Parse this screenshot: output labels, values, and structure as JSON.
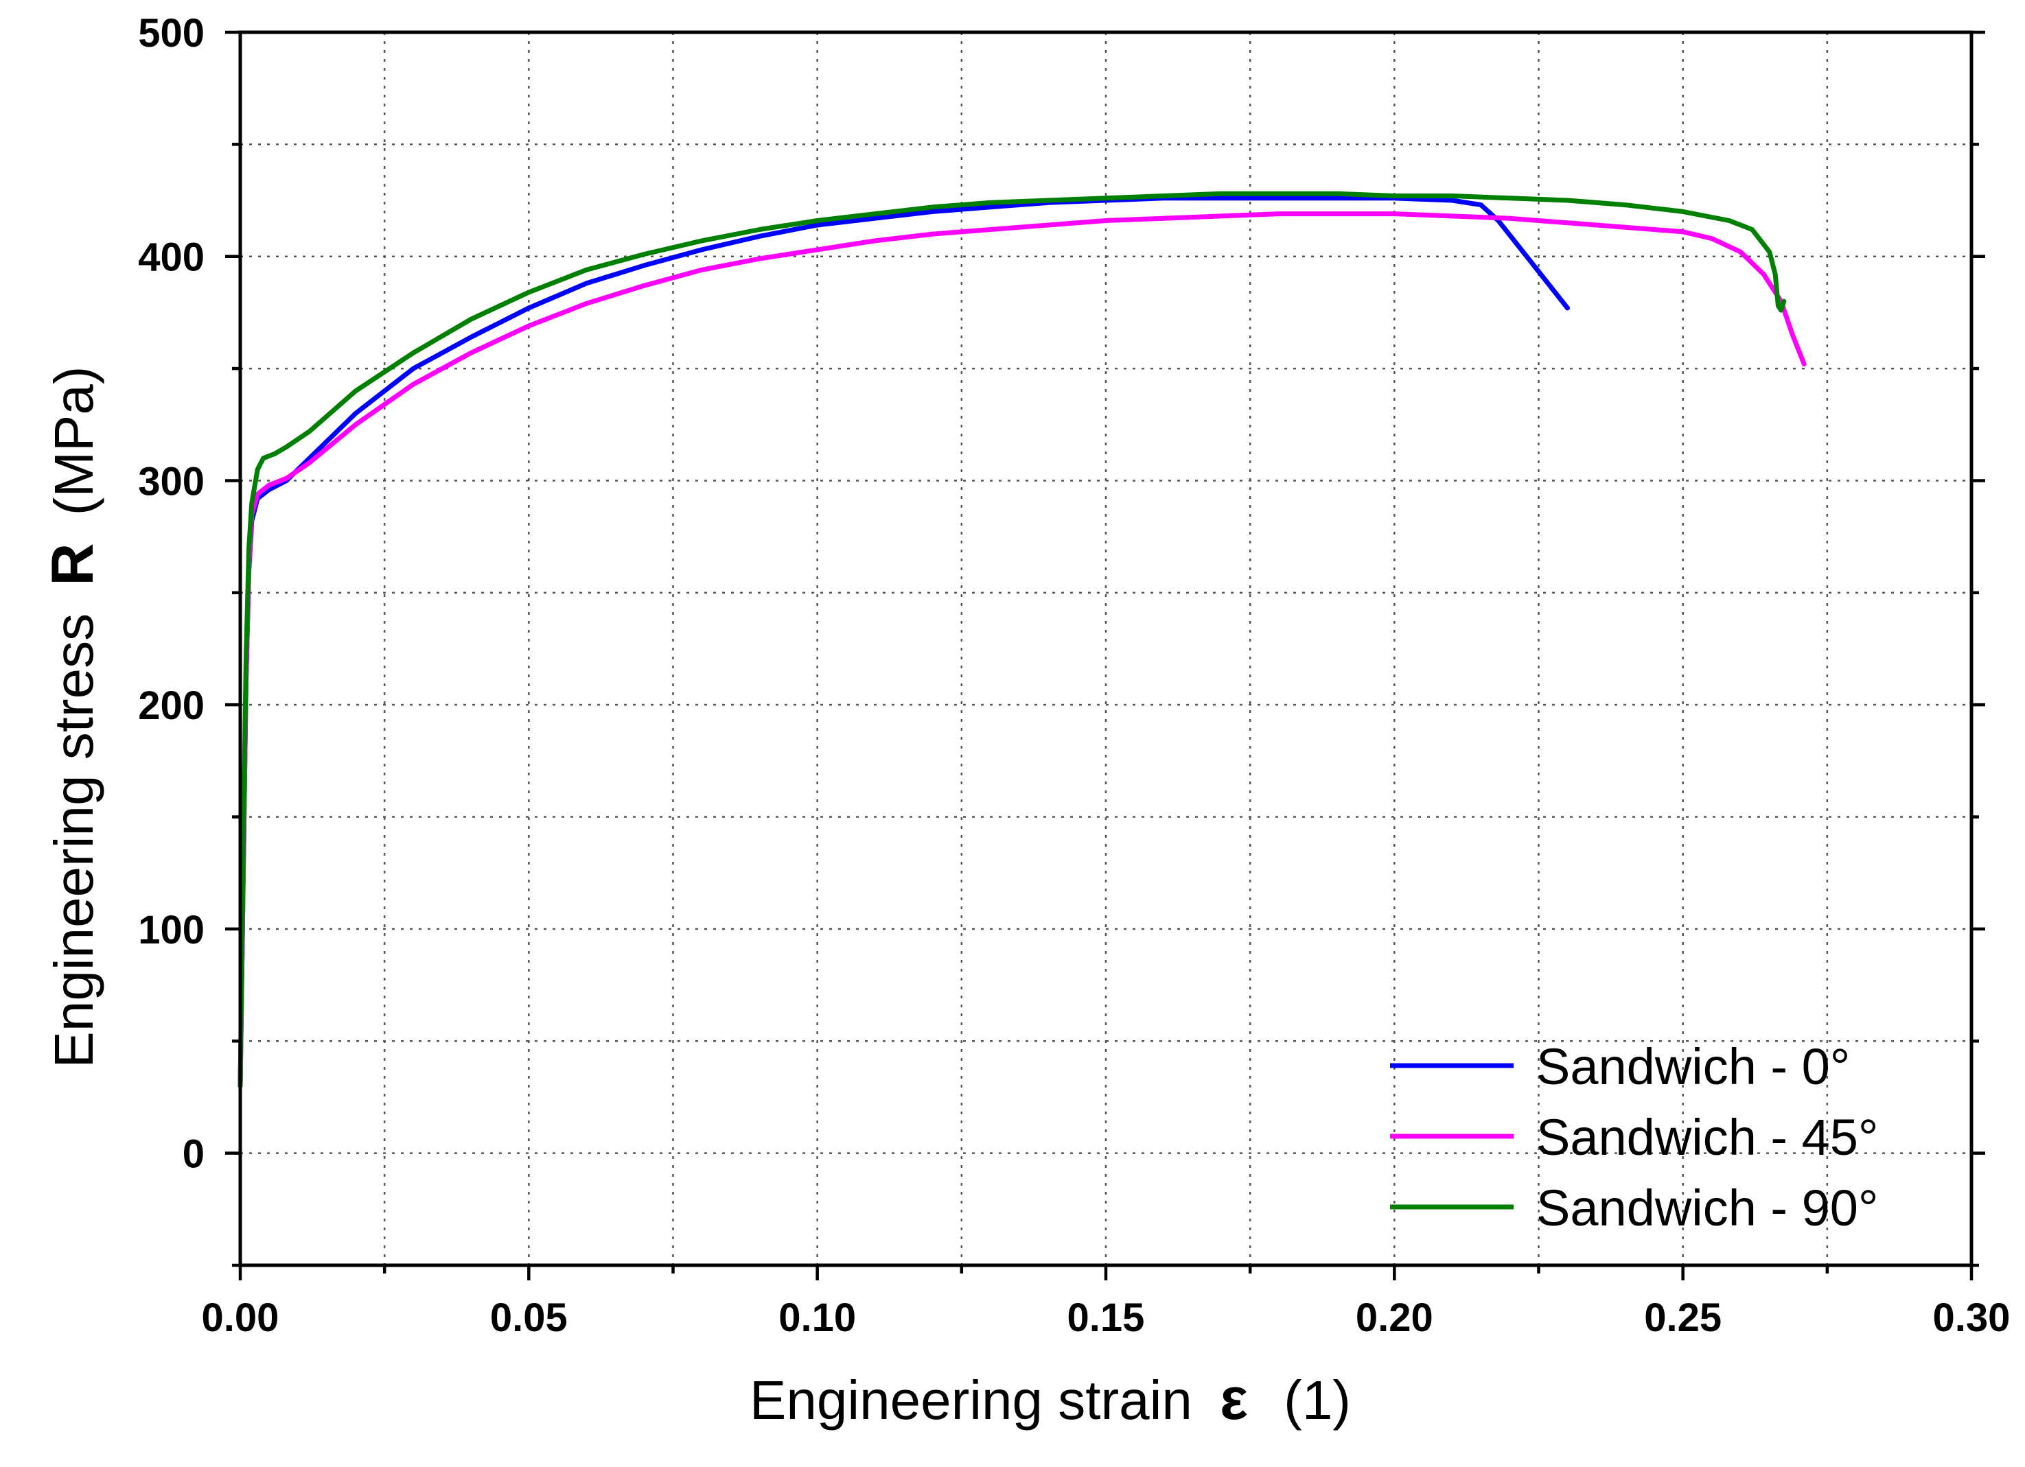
{
  "chart_data": {
    "type": "line",
    "title": "",
    "xlabel": "Engineering strain",
    "xlabel_symbol": "ε",
    "xlabel_unit": "(1)",
    "ylabel": "Engineering stress",
    "ylabel_symbol": "R",
    "ylabel_unit": "(MPa)",
    "xlim": [
      0,
      0.3
    ],
    "ylim": [
      -50,
      500
    ],
    "x_ticks": [
      0.0,
      0.05,
      0.1,
      0.15,
      0.2,
      0.25,
      0.3
    ],
    "x_tick_labels": [
      "0.00",
      "0.05",
      "0.10",
      "0.15",
      "0.20",
      "0.25",
      "0.30"
    ],
    "y_ticks": [
      0,
      100,
      200,
      300,
      400,
      500
    ],
    "y_tick_labels": [
      "0",
      "100",
      "200",
      "300",
      "400",
      "500"
    ],
    "grid": true,
    "legend_position": "bottom-right",
    "series": [
      {
        "name": "Sandwich - 0°",
        "color": "#0000ff",
        "points": [
          [
            0.0,
            30
          ],
          [
            0.0005,
            120
          ],
          [
            0.001,
            210
          ],
          [
            0.0015,
            260
          ],
          [
            0.002,
            282
          ],
          [
            0.003,
            292
          ],
          [
            0.005,
            296
          ],
          [
            0.008,
            300
          ],
          [
            0.012,
            310
          ],
          [
            0.02,
            330
          ],
          [
            0.03,
            350
          ],
          [
            0.04,
            364
          ],
          [
            0.05,
            377
          ],
          [
            0.06,
            388
          ],
          [
            0.07,
            396
          ],
          [
            0.08,
            403
          ],
          [
            0.09,
            409
          ],
          [
            0.1,
            414
          ],
          [
            0.11,
            417
          ],
          [
            0.12,
            420
          ],
          [
            0.13,
            422
          ],
          [
            0.14,
            424
          ],
          [
            0.15,
            425
          ],
          [
            0.16,
            426
          ],
          [
            0.17,
            426
          ],
          [
            0.18,
            426
          ],
          [
            0.19,
            426
          ],
          [
            0.2,
            426
          ],
          [
            0.21,
            425
          ],
          [
            0.215,
            423
          ],
          [
            0.218,
            416
          ],
          [
            0.222,
            403
          ],
          [
            0.226,
            390
          ],
          [
            0.23,
            377
          ]
        ]
      },
      {
        "name": "Sandwich - 45°",
        "color": "#ff00ff",
        "points": [
          [
            0.0,
            30
          ],
          [
            0.0005,
            120
          ],
          [
            0.001,
            210
          ],
          [
            0.0015,
            262
          ],
          [
            0.002,
            285
          ],
          [
            0.003,
            294
          ],
          [
            0.005,
            298
          ],
          [
            0.008,
            301
          ],
          [
            0.012,
            308
          ],
          [
            0.02,
            325
          ],
          [
            0.03,
            343
          ],
          [
            0.04,
            357
          ],
          [
            0.05,
            369
          ],
          [
            0.06,
            379
          ],
          [
            0.07,
            387
          ],
          [
            0.08,
            394
          ],
          [
            0.09,
            399
          ],
          [
            0.1,
            403
          ],
          [
            0.11,
            407
          ],
          [
            0.12,
            410
          ],
          [
            0.13,
            412
          ],
          [
            0.14,
            414
          ],
          [
            0.15,
            416
          ],
          [
            0.16,
            417
          ],
          [
            0.17,
            418
          ],
          [
            0.18,
            419
          ],
          [
            0.19,
            419
          ],
          [
            0.2,
            419
          ],
          [
            0.21,
            418
          ],
          [
            0.22,
            417
          ],
          [
            0.23,
            415
          ],
          [
            0.24,
            413
          ],
          [
            0.25,
            411
          ],
          [
            0.255,
            408
          ],
          [
            0.26,
            402
          ],
          [
            0.264,
            392
          ],
          [
            0.267,
            380
          ],
          [
            0.269,
            365
          ],
          [
            0.271,
            352
          ]
        ]
      },
      {
        "name": "Sandwich - 90°",
        "color": "#008000",
        "points": [
          [
            0.0,
            30
          ],
          [
            0.0005,
            130
          ],
          [
            0.001,
            220
          ],
          [
            0.0015,
            270
          ],
          [
            0.002,
            290
          ],
          [
            0.003,
            305
          ],
          [
            0.004,
            310
          ],
          [
            0.006,
            312
          ],
          [
            0.008,
            315
          ],
          [
            0.012,
            322
          ],
          [
            0.02,
            340
          ],
          [
            0.03,
            357
          ],
          [
            0.04,
            372
          ],
          [
            0.05,
            384
          ],
          [
            0.06,
            394
          ],
          [
            0.07,
            401
          ],
          [
            0.08,
            407
          ],
          [
            0.09,
            412
          ],
          [
            0.1,
            416
          ],
          [
            0.11,
            419
          ],
          [
            0.12,
            422
          ],
          [
            0.13,
            424
          ],
          [
            0.14,
            425
          ],
          [
            0.15,
            426
          ],
          [
            0.16,
            427
          ],
          [
            0.17,
            428
          ],
          [
            0.18,
            428
          ],
          [
            0.19,
            428
          ],
          [
            0.2,
            427
          ],
          [
            0.21,
            427
          ],
          [
            0.22,
            426
          ],
          [
            0.23,
            425
          ],
          [
            0.24,
            423
          ],
          [
            0.25,
            420
          ],
          [
            0.258,
            416
          ],
          [
            0.262,
            412
          ],
          [
            0.265,
            402
          ],
          [
            0.266,
            392
          ],
          [
            0.2665,
            378
          ],
          [
            0.267,
            376
          ],
          [
            0.2675,
            380
          ]
        ]
      }
    ]
  }
}
